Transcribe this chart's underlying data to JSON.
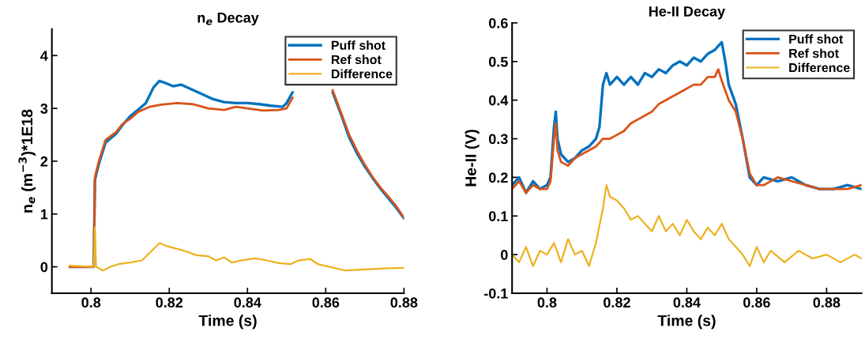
{
  "chart_data": [
    {
      "type": "line",
      "title": "n$_{e}$ Decay",
      "xlabel": "Time (s)",
      "ylabel": "n$_{e}$ (m$^{−3}$)*1E18",
      "xlim": [
        0.79,
        0.88
      ],
      "ylim": [
        -0.5,
        4.5
      ],
      "xticks": [
        0.8,
        0.82,
        0.84,
        0.86,
        0.88
      ],
      "yticks": [
        0,
        1,
        2,
        3,
        4
      ],
      "grid": false,
      "legend": "top right",
      "series": [
        {
          "name": "Puff shot",
          "color": "#0072bd",
          "x": [
            0.7946,
            0.8007,
            0.801,
            0.802,
            0.8037,
            0.8064,
            0.808,
            0.81,
            0.812,
            0.814,
            0.816,
            0.8175,
            0.819,
            0.821,
            0.823,
            0.826,
            0.829,
            0.831,
            0.834,
            0.837,
            0.84,
            0.843,
            0.846,
            0.849,
            0.85,
            0.8515,
            0.856,
            0.8618,
            0.864,
            0.866,
            0.868,
            0.87,
            0.872,
            0.874,
            0.876,
            0.878,
            0.88
          ],
          "values": [
            0.0,
            0.0,
            1.65,
            1.95,
            2.35,
            2.52,
            2.68,
            2.85,
            2.97,
            3.1,
            3.4,
            3.52,
            3.48,
            3.42,
            3.45,
            3.35,
            3.25,
            3.18,
            3.12,
            3.1,
            3.1,
            3.08,
            3.05,
            3.03,
            3.1,
            3.3,
            null,
            3.3,
            2.87,
            2.45,
            2.15,
            1.9,
            1.68,
            1.48,
            1.3,
            1.12,
            0.92
          ]
        },
        {
          "name": "Ref shot",
          "color": "#d95319",
          "x": [
            0.7946,
            0.8007,
            0.801,
            0.802,
            0.8037,
            0.8064,
            0.808,
            0.81,
            0.812,
            0.815,
            0.818,
            0.822,
            0.826,
            0.83,
            0.834,
            0.837,
            0.84,
            0.844,
            0.848,
            0.85,
            0.8515,
            0.856,
            0.8618,
            0.864,
            0.866,
            0.868,
            0.87,
            0.872,
            0.874,
            0.876,
            0.878,
            0.88
          ],
          "values": [
            0.0,
            0.0,
            1.7,
            2.0,
            2.4,
            2.55,
            2.7,
            2.8,
            2.93,
            3.03,
            3.07,
            3.1,
            3.08,
            3.0,
            2.97,
            3.03,
            3.0,
            2.96,
            2.97,
            3.0,
            3.2,
            null,
            3.34,
            2.9,
            2.5,
            2.2,
            1.93,
            1.7,
            1.5,
            1.33,
            1.15,
            0.93
          ]
        },
        {
          "name": "Difference",
          "color": "#edb120",
          "x": [
            0.7946,
            0.8007,
            0.801,
            0.8013,
            0.803,
            0.805,
            0.807,
            0.81,
            0.813,
            0.8155,
            0.8175,
            0.819,
            0.8215,
            0.824,
            0.827,
            0.83,
            0.832,
            0.834,
            0.836,
            0.839,
            0.842,
            0.845,
            0.848,
            0.851,
            0.853,
            0.856,
            0.858,
            0.861,
            0.865,
            0.87,
            0.875,
            0.88
          ],
          "values": [
            0.02,
            0.0,
            0.75,
            0.0,
            -0.07,
            0.0,
            0.05,
            0.08,
            0.12,
            0.3,
            0.45,
            0.4,
            0.35,
            0.3,
            0.22,
            0.2,
            0.12,
            0.18,
            0.08,
            0.13,
            0.16,
            0.12,
            0.07,
            0.05,
            0.12,
            0.15,
            0.05,
            0.0,
            -0.07,
            -0.05,
            -0.03,
            -0.02
          ]
        }
      ]
    },
    {
      "type": "line",
      "title": "He-II Decay",
      "xlabel": "Time (s)",
      "ylabel": "He-II (V)",
      "xlim": [
        0.79,
        0.89
      ],
      "ylim": [
        -0.1,
        0.6
      ],
      "xticks": [
        0.8,
        0.82,
        0.84,
        0.86,
        0.88
      ],
      "yticks": [
        {
          "value": -0.1,
          "label": "-0.1"
        },
        0,
        0.1,
        0.2,
        0.3,
        0.4,
        0.5,
        0.6
      ],
      "grid": false,
      "legend": "top right",
      "series": [
        {
          "name": "Puff shot",
          "color": "#0072bd",
          "x": [
            0.79,
            0.792,
            0.794,
            0.796,
            0.798,
            0.8,
            0.801,
            0.802,
            0.8025,
            0.803,
            0.804,
            0.806,
            0.808,
            0.81,
            0.812,
            0.814,
            0.815,
            0.816,
            0.817,
            0.818,
            0.82,
            0.822,
            0.824,
            0.826,
            0.828,
            0.83,
            0.832,
            0.834,
            0.836,
            0.838,
            0.84,
            0.842,
            0.844,
            0.846,
            0.848,
            0.85,
            0.851,
            0.852,
            0.854,
            0.856,
            0.858,
            0.86,
            0.862,
            0.866,
            0.87,
            0.874,
            0.878,
            0.882,
            0.886,
            0.89
          ],
          "values": [
            0.18,
            0.2,
            0.16,
            0.19,
            0.17,
            0.18,
            0.2,
            0.33,
            0.37,
            0.3,
            0.26,
            0.24,
            0.25,
            0.27,
            0.28,
            0.3,
            0.33,
            0.44,
            0.47,
            0.44,
            0.46,
            0.44,
            0.46,
            0.44,
            0.47,
            0.46,
            0.48,
            0.47,
            0.49,
            0.5,
            0.49,
            0.51,
            0.5,
            0.52,
            0.53,
            0.55,
            0.5,
            0.44,
            0.39,
            0.3,
            0.2,
            0.18,
            0.2,
            0.19,
            0.2,
            0.18,
            0.17,
            0.17,
            0.18,
            0.17
          ]
        },
        {
          "name": "Ref shot",
          "color": "#d95319",
          "x": [
            0.79,
            0.792,
            0.794,
            0.796,
            0.798,
            0.8,
            0.801,
            0.802,
            0.8025,
            0.803,
            0.804,
            0.806,
            0.808,
            0.81,
            0.812,
            0.814,
            0.816,
            0.818,
            0.82,
            0.822,
            0.824,
            0.826,
            0.828,
            0.83,
            0.832,
            0.834,
            0.836,
            0.838,
            0.84,
            0.842,
            0.844,
            0.846,
            0.848,
            0.849,
            0.85,
            0.852,
            0.854,
            0.856,
            0.858,
            0.86,
            0.862,
            0.866,
            0.87,
            0.874,
            0.878,
            0.882,
            0.886,
            0.89
          ],
          "values": [
            0.17,
            0.19,
            0.16,
            0.18,
            0.17,
            0.17,
            0.19,
            0.3,
            0.34,
            0.27,
            0.24,
            0.23,
            0.25,
            0.26,
            0.27,
            0.28,
            0.3,
            0.3,
            0.31,
            0.32,
            0.34,
            0.35,
            0.36,
            0.37,
            0.39,
            0.4,
            0.41,
            0.42,
            0.43,
            0.44,
            0.44,
            0.46,
            0.46,
            0.48,
            0.45,
            0.4,
            0.37,
            0.3,
            0.21,
            0.18,
            0.18,
            0.2,
            0.19,
            0.18,
            0.17,
            0.17,
            0.17,
            0.18
          ]
        },
        {
          "name": "Difference",
          "color": "#edb120",
          "x": [
            0.79,
            0.792,
            0.794,
            0.796,
            0.798,
            0.8,
            0.802,
            0.804,
            0.806,
            0.808,
            0.81,
            0.812,
            0.814,
            0.816,
            0.817,
            0.818,
            0.82,
            0.822,
            0.824,
            0.826,
            0.828,
            0.83,
            0.832,
            0.834,
            0.836,
            0.838,
            0.84,
            0.842,
            0.844,
            0.846,
            0.848,
            0.85,
            0.852,
            0.854,
            0.856,
            0.858,
            0.86,
            0.862,
            0.864,
            0.868,
            0.872,
            0.876,
            0.88,
            0.884,
            0.888,
            0.89
          ],
          "values": [
            0.0,
            -0.02,
            0.02,
            -0.03,
            0.01,
            0.0,
            0.03,
            -0.02,
            0.04,
            0.0,
            0.01,
            -0.03,
            0.03,
            0.12,
            0.18,
            0.15,
            0.14,
            0.12,
            0.09,
            0.1,
            0.08,
            0.06,
            0.1,
            0.06,
            0.08,
            0.05,
            0.09,
            0.06,
            0.04,
            0.07,
            0.05,
            0.08,
            0.04,
            0.02,
            0.0,
            -0.03,
            0.02,
            -0.02,
            0.01,
            -0.02,
            0.01,
            -0.01,
            0.0,
            -0.02,
            0.0,
            -0.01
          ]
        }
      ]
    }
  ]
}
